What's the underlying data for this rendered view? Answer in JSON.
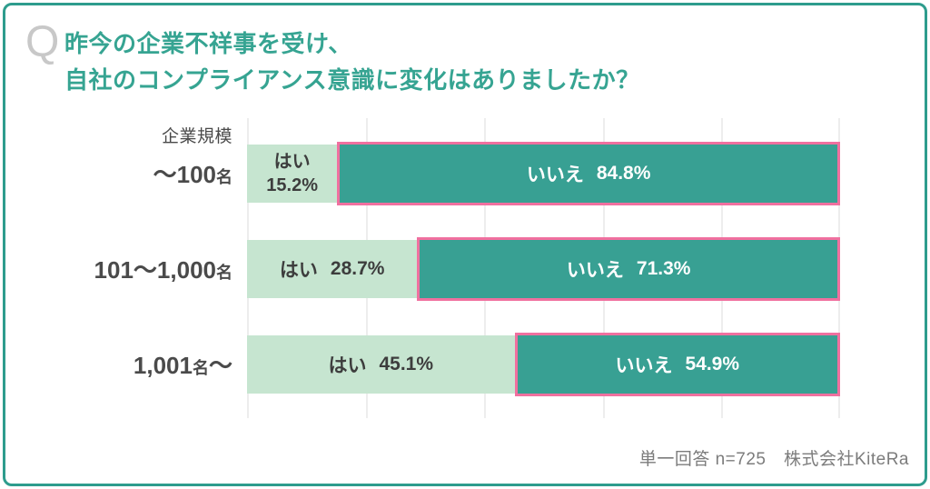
{
  "title": {
    "q_mark": "Q",
    "line1": "昨今の企業不祥事を受け、",
    "line2": "自社のコンプライアンス意識に変化はありましたか？"
  },
  "footer": {
    "note": "単一回答 n=725　株式会社KiteRa"
  },
  "colors": {
    "accent_teal": "#36a492",
    "frame_border": "#2e9c8d",
    "bar_yes": "#c6e5d0",
    "bar_no": "#38a093",
    "bar_no_border": "#f0709f",
    "q_mark_gray": "#c8c8c8",
    "category_text": "#4a4a4a",
    "footer_gray": "#7c7c7c",
    "gridline": "#ededed"
  },
  "chart_data": {
    "type": "bar",
    "orientation": "horizontal",
    "stacked": true,
    "title": "昨今の企業不祥事を受け、自社のコンプライアンス意識に変化はありましたか？",
    "axis_label": "企業規模",
    "categories": [
      "～100名",
      "101～1,000名",
      "1,001名～"
    ],
    "series": [
      {
        "name": "はい",
        "color": "#c6e5d0",
        "values": [
          15.2,
          28.7,
          45.1
        ]
      },
      {
        "name": "いいえ",
        "color": "#38a093",
        "values": [
          84.8,
          71.3,
          54.9
        ]
      }
    ],
    "xlim": [
      0,
      100
    ],
    "unit": "%",
    "gridline_step": 20,
    "legend": "none",
    "grid": "vertical-only",
    "rows": [
      {
        "category_main": "～100",
        "category_small": "名",
        "category_tail": "",
        "yes_label": "はい",
        "yes_value": "15.2%",
        "yes_pct": 15.2,
        "no_label": "いいえ",
        "no_value": "84.8%",
        "no_pct": 84.8
      },
      {
        "category_main": "101～1,000",
        "category_small": "名",
        "category_tail": "",
        "yes_label": "はい",
        "yes_value": "28.7%",
        "yes_pct": 28.7,
        "no_label": "いいえ",
        "no_value": "71.3%",
        "no_pct": 71.3
      },
      {
        "category_main": "1,001",
        "category_small": "名",
        "category_tail": "～",
        "yes_label": "はい",
        "yes_value": "45.1%",
        "yes_pct": 45.1,
        "no_label": "いいえ",
        "no_value": "54.9%",
        "no_pct": 54.9
      }
    ]
  }
}
